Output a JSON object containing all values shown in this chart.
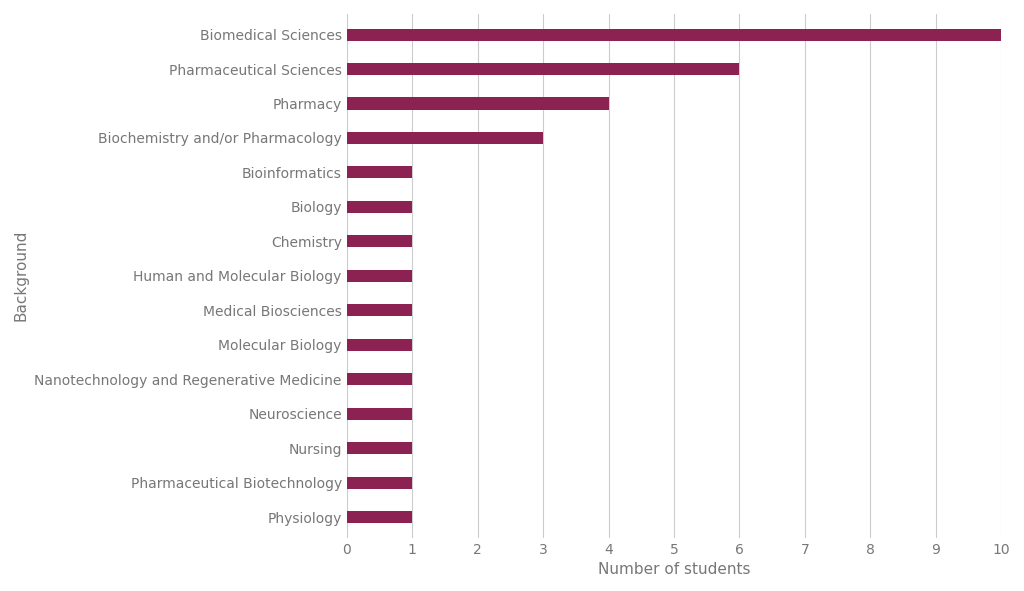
{
  "categories": [
    "Physiology",
    "Pharmaceutical Biotechnology",
    "Nursing",
    "Neuroscience",
    "Nanotechnology and Regenerative Medicine",
    "Molecular Biology",
    "Medical Biosciences",
    "Human and Molecular Biology",
    "Chemistry",
    "Biology",
    "Bioinformatics",
    "Biochemistry and/or Pharmacology",
    "Pharmacy",
    "Pharmaceutical Sciences",
    "Biomedical Sciences"
  ],
  "values": [
    1,
    1,
    1,
    1,
    1,
    1,
    1,
    1,
    1,
    1,
    1,
    3,
    4,
    6,
    10
  ],
  "bar_color": "#8B2252",
  "xlabel": "Number of students",
  "ylabel": "Background",
  "xlim": [
    0,
    10
  ],
  "xticks": [
    0,
    1,
    2,
    3,
    4,
    5,
    6,
    7,
    8,
    9,
    10
  ],
  "grid_color": "#cccccc",
  "background_color": "#ffffff",
  "bar_height": 0.35,
  "label_fontsize": 10,
  "axis_label_fontsize": 11,
  "tick_color": "#777777",
  "figsize": [
    10.24,
    5.91
  ],
  "dpi": 100
}
